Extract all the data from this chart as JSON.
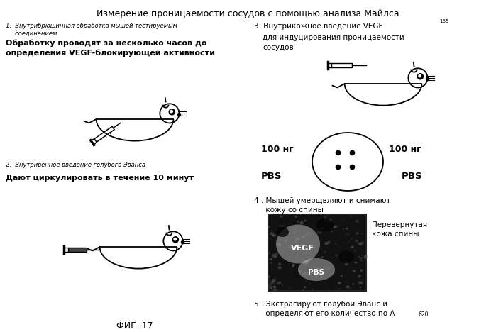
{
  "title": "Измерение проницаемости сосудов с помощью анализа Майлса",
  "fig_label": "ФИГ. 17",
  "bg_color": "#ffffff",
  "text_color": "#000000",
  "step1_small": "1.  Внутрибрюшинная обработка мышей тестируемым\n     соединением",
  "step1_bold": "Обработку проводят за несколько часов до\nопределения VEGF-блокирующей активности",
  "step2_small": "2.  Внутривенное введение голубого Эванса",
  "step2_bold": "Дают циркулировать в течение 10 минут",
  "step3_main": "3. Внутрикожное введение VEGF",
  "step3_sub": "165",
  "step3_line2": "для индуцирования проницаемости",
  "step3_line3": "сосудов",
  "step4_text": "4 . Мышей умерщвляют и снимают\n     кожу со спины",
  "step4_label": "Перевернутая\nкожа спины",
  "step5_text": "5 . Экстрагируют голубой Эванс и\n     определяют его количество по А",
  "step5_sub": "620",
  "label_100ng_left": "100 нг",
  "label_100ng_right": "100 нг",
  "label_pbs_left": "PBS",
  "label_pbs_right": "PBS",
  "label_vegf": "VEGF",
  "label_pbs_img": "PBS"
}
